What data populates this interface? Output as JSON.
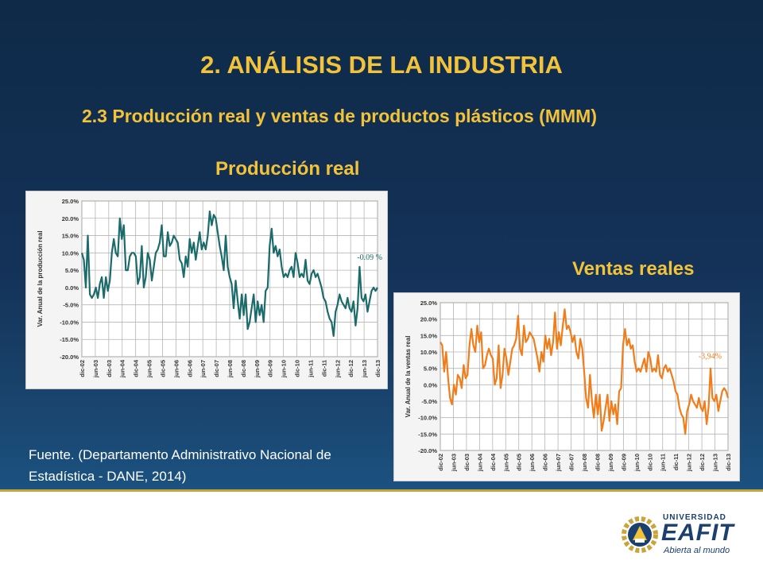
{
  "slide": {
    "title": "2. ANÁLISIS DE LA INDUSTRIA",
    "subtitle": "2.3 Producción real y ventas de productos plásticos (MMM)",
    "source": "Fuente. (Departamento Administrativo Nacional de Estadística - DANE, 2014)",
    "colors": {
      "background": "#143258",
      "title": "#f2c33a",
      "accent_line": "#c8a43a"
    }
  },
  "logo": {
    "line1": "UNIVERSIDAD",
    "line2": "EAFIT",
    "tagline": "Abierta al mundo",
    "icon": "eafit-gear-emblem-icon",
    "color": "#1b3f6e"
  },
  "chart_data": [
    {
      "type": "line",
      "heading": "Producción real",
      "ylabel": "Var. Anual de la producción real",
      "ylim": [
        -20,
        25
      ],
      "yticks": [
        "25.0%",
        "20.0%",
        "15.0%",
        "10.0%",
        "5.0%",
        "0.0%",
        "-5.0%",
        "-10.0%",
        "-15.0%",
        "-20.0%"
      ],
      "xticks": [
        "dic-02",
        "jun-03",
        "dic-03",
        "jun-04",
        "dic-04",
        "jun-05",
        "dic-05",
        "jun-06",
        "dic-06",
        "jun-07",
        "dic-07",
        "jun-08",
        "dic-08",
        "jun-09",
        "dic-09",
        "jun-10",
        "dic-10",
        "jun-11",
        "dic-11",
        "jun-12",
        "dic-12",
        "jun-13",
        "dic-13"
      ],
      "annotation": "-0.09 %",
      "grid": true,
      "color": "#1b6b6b",
      "values": [
        10,
        8,
        0,
        15,
        -2,
        -3,
        -2,
        0,
        -3,
        1,
        3,
        -3,
        3,
        -1,
        2,
        10,
        14,
        10,
        9,
        20,
        14,
        18,
        5,
        5,
        9,
        10,
        10,
        9,
        1,
        3,
        12,
        0,
        3,
        10,
        8,
        2,
        6,
        10,
        11,
        13,
        18,
        9,
        9,
        16,
        12,
        13,
        15,
        14,
        13,
        8,
        7,
        3,
        9,
        6,
        14,
        10,
        13,
        8,
        12,
        16,
        11,
        13,
        11,
        15,
        22,
        18,
        21,
        20,
        16,
        12,
        9,
        5,
        15,
        6,
        3,
        1,
        -6,
        2,
        -4,
        -9,
        -2,
        -8,
        -2,
        -12,
        -10,
        -6,
        -2,
        -10,
        -4,
        -8,
        -5,
        -10,
        -1,
        0,
        12,
        17,
        10,
        12,
        9,
        11,
        6,
        3,
        4,
        3,
        5,
        6,
        3,
        10,
        7,
        3,
        4,
        3,
        8,
        2,
        1,
        4,
        5,
        3,
        4,
        2,
        0,
        -3,
        -4,
        -7,
        -9,
        -10,
        -14,
        -7,
        -5,
        -2,
        -4,
        -5,
        -6,
        -3,
        -6,
        -7,
        -4,
        -11,
        -6,
        6,
        -3,
        -4,
        -2,
        -7,
        -4,
        -1,
        0,
        -1,
        0
      ]
    },
    {
      "type": "line",
      "heading": "Ventas reales",
      "ylabel": "Var. Anual de la ventas real",
      "ylim": [
        -20,
        25
      ],
      "yticks": [
        "25.0%",
        "20.0%",
        "15.0%",
        "10.0%",
        "5.0%",
        "0.0%",
        "-5.0%",
        "-10.0%",
        "-15.0%",
        "-20.0%"
      ],
      "xticks": [
        "dic-02",
        "jun-03",
        "dic-03",
        "jun-04",
        "dic-04",
        "jun-05",
        "dic-05",
        "jun-06",
        "dic-06",
        "jun-07",
        "dic-07",
        "jun-08",
        "dic-08",
        "jun-09",
        "dic-09",
        "jun-10",
        "dic-10",
        "jun-11",
        "dic-11",
        "jun-12",
        "dic-12",
        "jun-13",
        "dic-13"
      ],
      "annotation": "-3,94%",
      "grid": true,
      "color": "#f07d1a",
      "values": [
        13,
        12,
        4,
        10,
        2,
        -4,
        -6,
        0,
        -3,
        3,
        2,
        -1,
        6,
        2,
        3,
        12,
        17,
        12,
        10,
        18,
        13,
        16,
        5,
        6,
        9,
        11,
        9,
        8,
        0,
        2,
        12,
        -1,
        3,
        11,
        8,
        3,
        7,
        11,
        12,
        14,
        21,
        11,
        9,
        18,
        13,
        14,
        16,
        15,
        14,
        11,
        8,
        4,
        10,
        7,
        15,
        11,
        14,
        9,
        13,
        22,
        11,
        16,
        12,
        18,
        23,
        17,
        18,
        16,
        13,
        15,
        10,
        8,
        14,
        11,
        4,
        -4,
        -7,
        3,
        -5,
        -10,
        -3,
        -9,
        -3,
        -14,
        -11,
        -7,
        -3,
        -11,
        -5,
        -9,
        -6,
        -12,
        -2,
        -1,
        12,
        17,
        12,
        14,
        11,
        12,
        7,
        4,
        5,
        4,
        6,
        8,
        4,
        10,
        8,
        4,
        5,
        4,
        9,
        3,
        2,
        5,
        6,
        4,
        5,
        3,
        1,
        -2,
        -3,
        -7,
        -9,
        -10,
        -15,
        -8,
        -6,
        -3,
        -5,
        -6,
        -7,
        -4,
        -7,
        -8,
        -5,
        -12,
        -7,
        5,
        -4,
        -5,
        -3,
        -8,
        -5,
        -2,
        -1,
        -2,
        -4
      ]
    }
  ]
}
